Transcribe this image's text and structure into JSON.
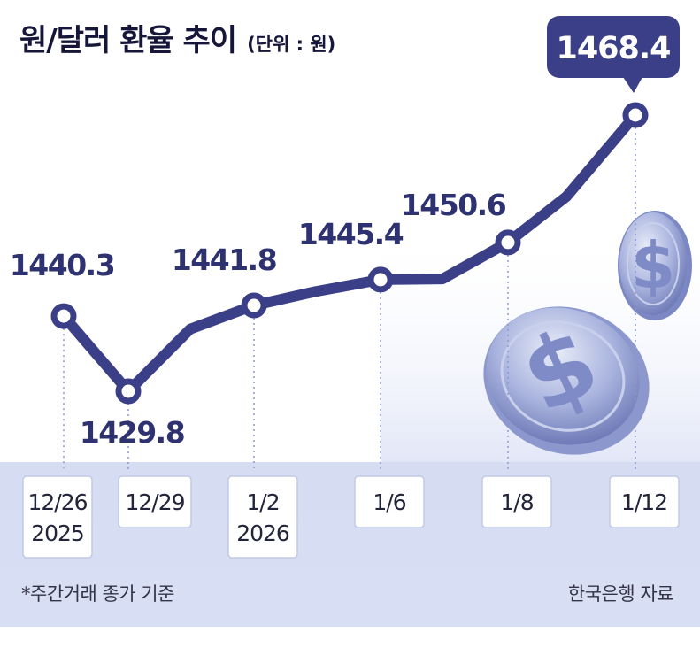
{
  "header": {
    "title": "원/달러 환율 추이",
    "unit": "(단위 : 원)"
  },
  "footer": {
    "note": "*주간거래 종가 기준",
    "source": "한국은행 자료"
  },
  "colors": {
    "line": "#3b3f87",
    "highlight_badge": "#3b3f87",
    "label_text": "#2e3270",
    "band": "#d2d9f1",
    "coin": "#9aa6d8"
  },
  "chart_data": {
    "type": "line",
    "title": "원/달러 환율 추이",
    "unit": "(단위 : 원)",
    "x_ticks": [
      {
        "label": [
          "12/26",
          "2025"
        ]
      },
      {
        "label": [
          "12/29"
        ]
      },
      {
        "label": [
          "1/2",
          "2026"
        ]
      },
      {
        "label": [
          "1/6"
        ]
      },
      {
        "label": [
          "1/8"
        ]
      },
      {
        "label": [
          "1/12"
        ]
      }
    ],
    "series": [
      {
        "values": [
          1440.3,
          1429.8,
          1438.5,
          1441.8,
          1443.7,
          1445.4,
          1445.5,
          1450.6,
          1457.0,
          1468.4
        ],
        "labels": [
          "1440.3",
          "1429.8",
          "",
          "1441.8",
          "",
          "1445.4",
          "",
          "1450.6",
          "",
          "1468.4"
        ],
        "tick_index": [
          0,
          1,
          null,
          2,
          null,
          3,
          null,
          4,
          null,
          5
        ]
      }
    ],
    "highlight": "1468.4",
    "grid": "dotted vertical guides at labeled dates",
    "legend": "none"
  }
}
